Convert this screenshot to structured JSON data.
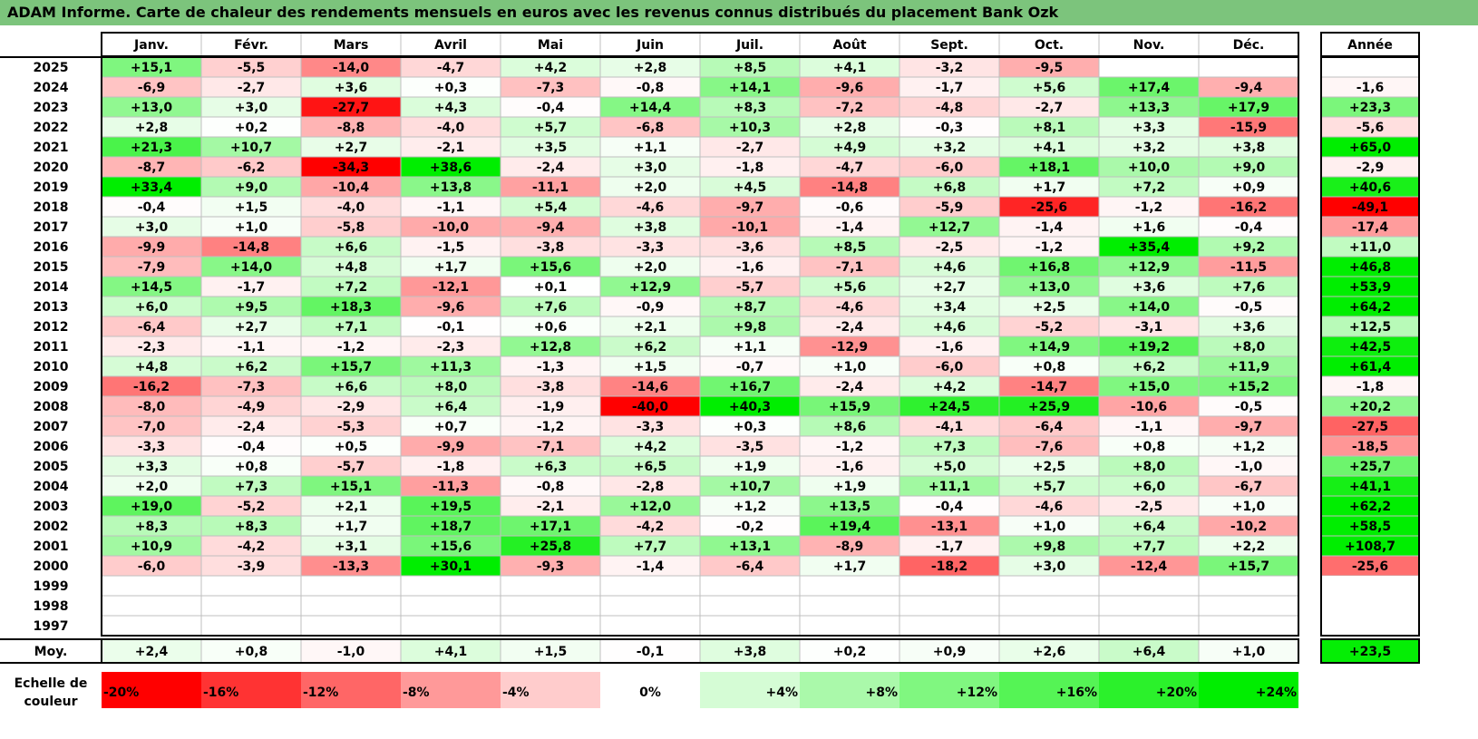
{
  "title": "ADAM Informe. Carte de chaleur des rendements mensuels en euros avec les revenus connus distribués du placement Bank Ozk",
  "chart_data": {
    "type": "heatmap",
    "months": [
      "Janv.",
      "Févr.",
      "Mars",
      "Avril",
      "Mai",
      "Juin",
      "Juil.",
      "Août",
      "Sept.",
      "Oct.",
      "Nov.",
      "Déc."
    ],
    "annual_header": "Année",
    "years": [
      "2025",
      "2024",
      "2023",
      "2022",
      "2021",
      "2020",
      "2019",
      "2018",
      "2017",
      "2016",
      "2015",
      "2014",
      "2013",
      "2012",
      "2011",
      "2010",
      "2009",
      "2008",
      "2007",
      "2006",
      "2005",
      "2004",
      "2003",
      "2002",
      "2001",
      "2000",
      "1999",
      "1998",
      "1997"
    ],
    "values": [
      [
        15.1,
        -5.5,
        -14.0,
        -4.7,
        4.2,
        2.8,
        8.5,
        4.1,
        -3.2,
        -9.5,
        null,
        null
      ],
      [
        -6.9,
        -2.7,
        3.6,
        0.3,
        -7.3,
        -0.8,
        14.1,
        -9.6,
        -1.7,
        5.6,
        17.4,
        -9.4
      ],
      [
        13.0,
        3.0,
        -27.7,
        4.3,
        -0.4,
        14.4,
        8.3,
        -7.2,
        -4.8,
        -2.7,
        13.3,
        17.9
      ],
      [
        2.8,
        0.2,
        -8.8,
        -4.0,
        5.7,
        -6.8,
        10.3,
        2.8,
        -0.3,
        8.1,
        3.3,
        -15.9
      ],
      [
        21.3,
        10.7,
        2.7,
        -2.1,
        3.5,
        1.1,
        -2.7,
        4.9,
        3.2,
        4.1,
        3.2,
        3.8
      ],
      [
        -8.7,
        -6.2,
        -34.3,
        38.6,
        -2.4,
        3.0,
        -1.8,
        -4.7,
        -6.0,
        18.1,
        10.0,
        9.0
      ],
      [
        33.4,
        9.0,
        -10.4,
        13.8,
        -11.1,
        2.0,
        4.5,
        -14.8,
        6.8,
        1.7,
        7.2,
        0.9
      ],
      [
        -0.4,
        1.5,
        -4.0,
        -1.1,
        5.4,
        -4.6,
        -9.7,
        -0.6,
        -5.9,
        -25.6,
        -1.2,
        -16.2
      ],
      [
        3.0,
        1.0,
        -5.8,
        -10.0,
        -9.4,
        3.8,
        -10.1,
        -1.4,
        12.7,
        -1.4,
        1.6,
        -0.4
      ],
      [
        -9.9,
        -14.8,
        6.6,
        -1.5,
        -3.8,
        -3.3,
        -3.6,
        8.5,
        -2.5,
        -1.2,
        35.4,
        9.2
      ],
      [
        -7.9,
        14.0,
        4.8,
        1.7,
        15.6,
        2.0,
        -1.6,
        -7.1,
        4.6,
        16.8,
        12.9,
        -11.5
      ],
      [
        14.5,
        -1.7,
        7.2,
        -12.1,
        0.1,
        12.9,
        -5.7,
        5.6,
        2.7,
        13.0,
        3.6,
        7.6
      ],
      [
        6.0,
        9.5,
        18.3,
        -9.6,
        7.6,
        -0.9,
        8.7,
        -4.6,
        3.4,
        2.5,
        14.0,
        -0.5
      ],
      [
        -6.4,
        2.7,
        7.1,
        -0.1,
        0.6,
        2.1,
        9.8,
        -2.4,
        4.6,
        -5.2,
        -3.1,
        3.6
      ],
      [
        -2.3,
        -1.1,
        -1.2,
        -2.3,
        12.8,
        6.2,
        1.1,
        -12.9,
        -1.6,
        14.9,
        19.2,
        8.0
      ],
      [
        4.8,
        6.2,
        15.7,
        11.3,
        -1.3,
        1.5,
        -0.7,
        1.0,
        -6.0,
        0.8,
        6.2,
        11.9
      ],
      [
        -16.2,
        -7.3,
        6.6,
        8.0,
        -3.8,
        -14.6,
        16.7,
        -2.4,
        4.2,
        -14.7,
        15.0,
        15.2
      ],
      [
        -8.0,
        -4.9,
        -2.9,
        6.4,
        -1.9,
        -40.0,
        40.3,
        15.9,
        24.5,
        25.9,
        -10.6,
        -0.5
      ],
      [
        -7.0,
        -2.4,
        -5.3,
        0.7,
        -1.2,
        -3.3,
        0.3,
        8.6,
        -4.1,
        -6.4,
        -1.1,
        -9.7
      ],
      [
        -3.3,
        -0.4,
        0.5,
        -9.9,
        -7.1,
        4.2,
        -3.5,
        -1.2,
        7.3,
        -7.6,
        0.8,
        1.2
      ],
      [
        3.3,
        0.8,
        -5.7,
        -1.8,
        6.3,
        6.5,
        1.9,
        -1.6,
        5.0,
        2.5,
        8.0,
        -1.0
      ],
      [
        2.0,
        7.3,
        15.1,
        -11.3,
        -0.8,
        -2.8,
        10.7,
        1.9,
        11.1,
        5.7,
        6.0,
        -6.7
      ],
      [
        19.0,
        -5.2,
        2.1,
        19.5,
        -2.1,
        12.0,
        1.2,
        13.5,
        -0.4,
        -4.6,
        -2.5,
        1.0
      ],
      [
        8.3,
        8.3,
        1.7,
        18.7,
        17.1,
        -4.2,
        -0.2,
        19.4,
        -13.1,
        1.0,
        6.4,
        -10.2
      ],
      [
        10.9,
        -4.2,
        3.1,
        15.6,
        25.8,
        7.7,
        13.1,
        -8.9,
        -1.7,
        9.8,
        7.7,
        2.2
      ],
      [
        -6.0,
        -3.9,
        -13.3,
        30.1,
        -9.3,
        -1.4,
        -6.4,
        1.7,
        -18.2,
        3.0,
        -12.4,
        15.7
      ],
      [
        null,
        null,
        null,
        null,
        null,
        null,
        null,
        null,
        null,
        null,
        null,
        null
      ],
      [
        null,
        null,
        null,
        null,
        null,
        null,
        null,
        null,
        null,
        null,
        null,
        null
      ],
      [
        null,
        null,
        null,
        null,
        null,
        null,
        null,
        null,
        null,
        null,
        null,
        null
      ]
    ],
    "annual": [
      null,
      -1.6,
      23.3,
      -5.6,
      65.0,
      -2.9,
      40.6,
      -49.1,
      -17.4,
      11.0,
      46.8,
      53.9,
      64.2,
      12.5,
      42.5,
      61.4,
      -1.8,
      20.2,
      -27.5,
      -18.5,
      25.7,
      41.1,
      62.2,
      58.5,
      108.7,
      -25.6,
      null,
      null,
      null
    ],
    "average_label": "Moy.",
    "averages": [
      2.4,
      0.8,
      -1.0,
      4.1,
      1.5,
      -0.1,
      3.8,
      0.2,
      0.9,
      2.6,
      6.4,
      1.0
    ],
    "average_annual": 23.5,
    "scale_label": [
      "Echelle de",
      "couleur"
    ],
    "scale": [
      "-20%",
      "-16%",
      "-12%",
      "-8%",
      "-4%",
      "0%",
      "+4%",
      "+8%",
      "+12%",
      "+16%",
      "+20%",
      "+24%"
    ],
    "colors": {
      "negative_max": "#ff0000",
      "positive_max": "#00ee00",
      "neutral": "#ffffff",
      "title_bar": "#7cc47c",
      "grid": "#bfbfbf",
      "border": "#000000"
    }
  }
}
